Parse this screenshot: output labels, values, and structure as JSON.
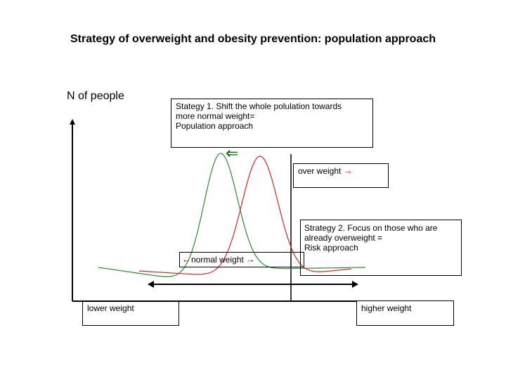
{
  "title": "Strategy of overweight and obesity prevention: population approach",
  "y_axis_label": "N of people",
  "strategy1": {
    "lines": [
      "Stategy 1. Shift the whole polulation towards",
      "more normal weight=",
      "Population approach"
    ]
  },
  "strategy2": {
    "lines": [
      "Strategy 2. Focus on those who are",
      "already overweight =",
      "Risk approach"
    ]
  },
  "overweight_label": "over weight",
  "normal_weight_label": "normal weight",
  "lower_label": "lower  weight",
  "higher_label": "higher weight",
  "glyphs": {
    "right_arrow": "→",
    "left_arrow": "←",
    "double_left_arrow": "⇐"
  },
  "colors": {
    "shifted_distribution": "#2e8b2e",
    "current_distribution": "#dd2222",
    "arrow_red": "#cc0000",
    "arrow_green": "#008000",
    "axis": "#000000"
  },
  "curves": [
    {
      "color_key": "shifted_distribution",
      "icon": "green-curve"
    },
    {
      "color_key": "current_distribution",
      "icon": "red-curve"
    }
  ]
}
